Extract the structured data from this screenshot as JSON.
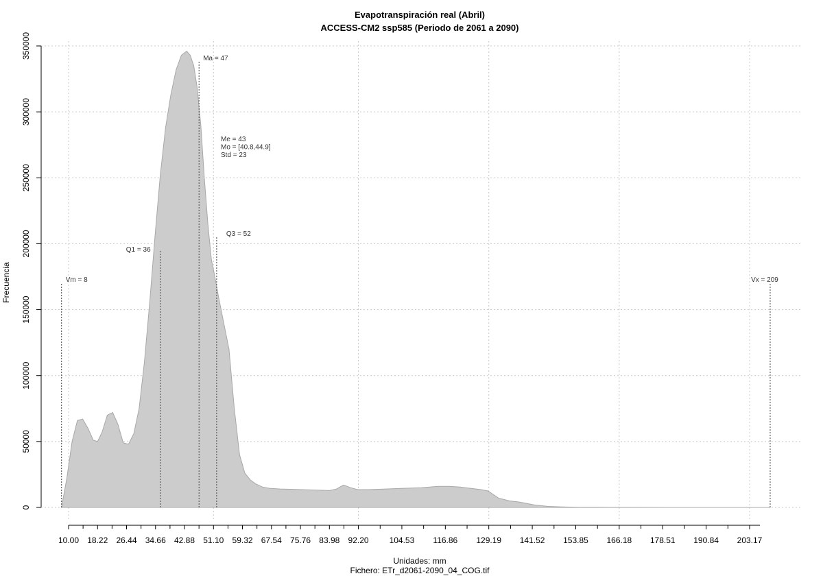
{
  "chart_data": {
    "type": "area",
    "title": "Evapotranspiración real (Abril)",
    "subtitle": "ACCESS-CM2 ssp585 (Periodo de 2061 a 2090)",
    "xlabel": "Unidades: mm",
    "ylabel": "Frecuencia",
    "footer": "Fichero: ETr_d2061-2090_04_COG.tif",
    "xlim": [
      8,
      219
    ],
    "ylim": [
      0,
      350000
    ],
    "grid": true,
    "x_ticks": [
      10.0,
      18.22,
      26.44,
      34.66,
      42.88,
      51.1,
      59.32,
      67.54,
      75.76,
      83.98,
      92.2,
      104.53,
      116.86,
      129.19,
      141.52,
      153.85,
      166.18,
      178.51,
      190.84,
      203.17
    ],
    "x_tick_labels": [
      "10.00",
      "18.22",
      "26.44",
      "34.66",
      "42.88",
      "51.10",
      "59.32",
      "67.54",
      "75.76",
      "83.98",
      "92.20",
      "104.53",
      "116.86",
      "129.19",
      "141.52",
      "153.85",
      "166.18",
      "178.51",
      "190.84",
      "203.17"
    ],
    "x_minor_ticks": [
      14.11,
      22.33,
      30.55,
      38.77,
      46.99,
      55.21,
      63.43,
      71.65,
      79.87,
      88.09,
      98.37,
      110.7,
      123.03,
      135.36,
      147.69,
      160.02,
      172.35,
      184.68,
      197.01
    ],
    "y_ticks": [
      0,
      50000,
      100000,
      150000,
      200000,
      250000,
      300000,
      350000
    ],
    "y_tick_labels": [
      "0",
      "50000",
      "100000",
      "150000",
      "200000",
      "250000",
      "300000",
      "350000"
    ],
    "x_grid": [
      10.0,
      51.1,
      92.2,
      129.19,
      166.18,
      203.17
    ],
    "density": {
      "x": [
        8.0,
        9.5,
        11.0,
        12.5,
        14.0,
        15.5,
        17.0,
        18.2,
        19.5,
        21.0,
        22.5,
        24.0,
        25.5,
        27.0,
        28.5,
        30.0,
        31.5,
        33.0,
        34.5,
        36.0,
        37.5,
        39.0,
        40.5,
        42.0,
        43.5,
        44.5,
        45.5,
        46.5,
        47.5,
        48.5,
        49.5,
        50.5,
        51.5,
        52.5,
        54.0,
        55.5,
        57.0,
        58.5,
        60.0,
        61.5,
        63.0,
        65.0,
        67.0,
        70.0,
        73.0,
        76.0,
        80.0,
        84.0,
        86.0,
        88.0,
        90.0,
        92.0,
        95.0,
        100.0,
        105.0,
        110.0,
        115.0,
        118.0,
        121.0,
        124.0,
        127.0,
        129.0,
        132.0,
        135.0,
        138.0,
        142.0,
        146.0,
        150.0,
        155.0,
        160.0,
        170.0,
        180.0,
        190.0,
        200.0,
        209.0
      ],
      "y": [
        0,
        22000,
        50000,
        66000,
        67000,
        60000,
        51000,
        50000,
        57000,
        70000,
        72000,
        63000,
        49000,
        48000,
        56000,
        75000,
        110000,
        155000,
        205000,
        252000,
        288000,
        313000,
        332000,
        343000,
        346000,
        343000,
        335000,
        318000,
        290000,
        250000,
        215000,
        188000,
        175000,
        160000,
        140000,
        120000,
        75000,
        40000,
        26000,
        21000,
        18000,
        15500,
        14500,
        14000,
        13800,
        13500,
        13200,
        12800,
        14000,
        17000,
        15000,
        13500,
        13500,
        14000,
        14500,
        15000,
        16000,
        16000,
        15500,
        14500,
        13500,
        12500,
        7000,
        5000,
        4000,
        2000,
        800,
        400,
        150,
        80,
        40,
        20,
        10,
        5,
        0
      ]
    },
    "vlines": [
      {
        "x": 8,
        "label": "Vm = 8",
        "top": 170000
      },
      {
        "x": 36,
        "label": "Q1 = 36",
        "top": 195000
      },
      {
        "x": 47,
        "label": "Ma = 47",
        "top": 338000
      },
      {
        "x": 52,
        "label": "Q3 = 52",
        "top": 205000
      },
      {
        "x": 209,
        "label": "Vx = 209",
        "top": 170000
      }
    ],
    "stats_block": [
      "Me = 43",
      "Mo = [40.8,44.9]",
      "Std = 23"
    ],
    "area_color": "#cccccc",
    "line_color": "#a8a8a8"
  }
}
